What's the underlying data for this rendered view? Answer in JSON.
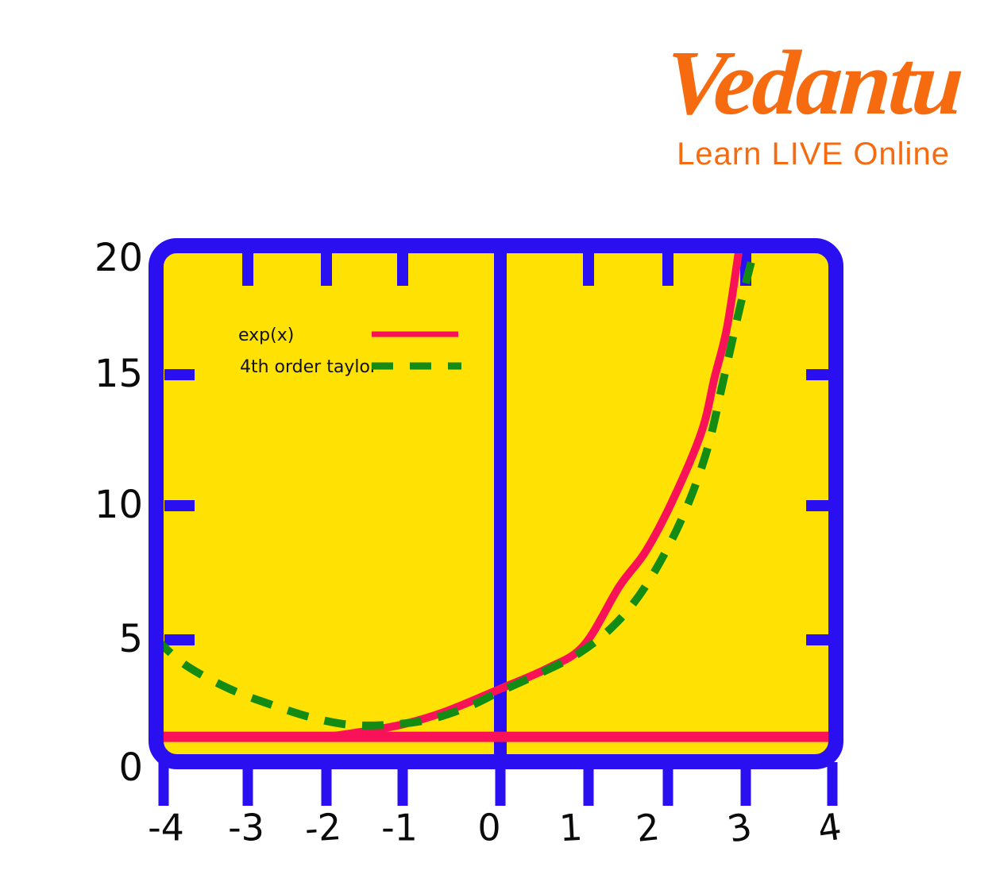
{
  "brand": {
    "name": "Vedantu",
    "tagline": "Learn LIVE Online",
    "color": "#f76b10"
  },
  "chart_data": {
    "type": "line",
    "title": "",
    "xlabel": "",
    "ylabel": "",
    "xlim": [
      -4,
      4
    ],
    "ylim": [
      0,
      20
    ],
    "grid": false,
    "background_color": "#ffe103",
    "frame_color": "#2a10f0",
    "zero_axis_line": true,
    "x_ticks": [
      -4,
      -3,
      -2,
      -1,
      0,
      1,
      2,
      3,
      4
    ],
    "x_tick_labels": [
      "-4",
      "-3",
      "-2",
      "-1",
      "0",
      "1",
      "2",
      "3",
      "4"
    ],
    "y_ticks": [
      0,
      5,
      10,
      15,
      20
    ],
    "y_tick_labels": [
      "0",
      "5",
      "10",
      "15",
      "20"
    ],
    "legend_position": "upper left inside",
    "legend": [
      {
        "label": "exp(x)",
        "color": "#fa1258",
        "style": "solid"
      },
      {
        "label": "4th order taylor",
        "color": "#148c14",
        "style": "dashed"
      }
    ],
    "series": [
      {
        "name": "exp(x)",
        "color": "#fa1258",
        "line_style": "solid",
        "baseline_y": 1.23,
        "baseline_x_from": -4.2,
        "baseline_x_to": 4.15,
        "points": [
          [
            -2.5,
            1.23
          ],
          [
            -2.11,
            1.2
          ],
          [
            -1.59,
            1.4
          ],
          [
            -1.02,
            1.7
          ],
          [
            -0.57,
            2.2
          ],
          [
            0.0,
            3.1
          ],
          [
            0.54,
            3.9
          ],
          [
            0.95,
            4.8
          ],
          [
            1.39,
            7.0
          ],
          [
            1.72,
            8.3
          ],
          [
            2.06,
            10.2
          ],
          [
            2.43,
            12.8
          ],
          [
            2.6,
            14.9
          ],
          [
            2.76,
            17.0
          ],
          [
            2.92,
            20.4
          ]
        ]
      },
      {
        "name": "4th order taylor",
        "color": "#148c14",
        "line_style": "dashed",
        "points": [
          [
            -4.1,
            5.05
          ],
          [
            -3.73,
            4.0
          ],
          [
            -3.22,
            3.1
          ],
          [
            -2.72,
            2.5
          ],
          [
            -2.21,
            2.0
          ],
          [
            -1.7,
            1.7
          ],
          [
            -1.18,
            1.7
          ],
          [
            -0.73,
            1.9
          ],
          [
            -0.33,
            2.4
          ],
          [
            0.0,
            3.0
          ],
          [
            0.45,
            3.7
          ],
          [
            0.9,
            4.5
          ],
          [
            1.34,
            5.6
          ],
          [
            1.74,
            7.1
          ],
          [
            2.16,
            9.4
          ],
          [
            2.49,
            12.0
          ],
          [
            2.72,
            14.9
          ],
          [
            2.93,
            17.9
          ],
          [
            3.13,
            20.7
          ]
        ]
      }
    ]
  }
}
